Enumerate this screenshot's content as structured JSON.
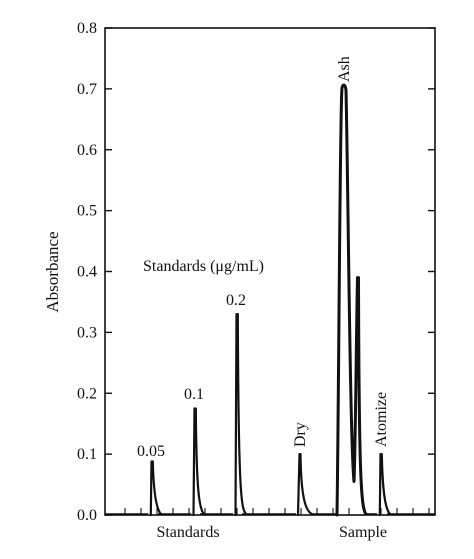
{
  "chart_data": {
    "type": "line",
    "ylabel": "Absorbance",
    "xlabel": "",
    "ylim": [
      0,
      0.8
    ],
    "yticks": [
      "0.0",
      "0.1",
      "0.2",
      "0.3",
      "0.4",
      "0.5",
      "0.6",
      "0.7",
      "0.8"
    ],
    "x_category_labels": [
      "Standards",
      "Sample"
    ],
    "grid": false,
    "annotations": {
      "standards_group": "Standards (μg/mL)",
      "std_005": "0.05",
      "std_01": "0.1",
      "std_02": "0.2",
      "dry": "Dry",
      "ash": "Ash",
      "atomize": "Atomize"
    },
    "peaks": [
      {
        "label": "0.05",
        "value": 0.088
      },
      {
        "label": "0.1",
        "value": 0.175
      },
      {
        "label": "0.2",
        "value": 0.33
      },
      {
        "label": "Dry",
        "value": 0.1
      },
      {
        "label": "Ash",
        "value": 0.705
      },
      {
        "label": "Ash (second peak)",
        "value": 0.39
      },
      {
        "label": "Atomize",
        "value": 0.1
      }
    ]
  }
}
